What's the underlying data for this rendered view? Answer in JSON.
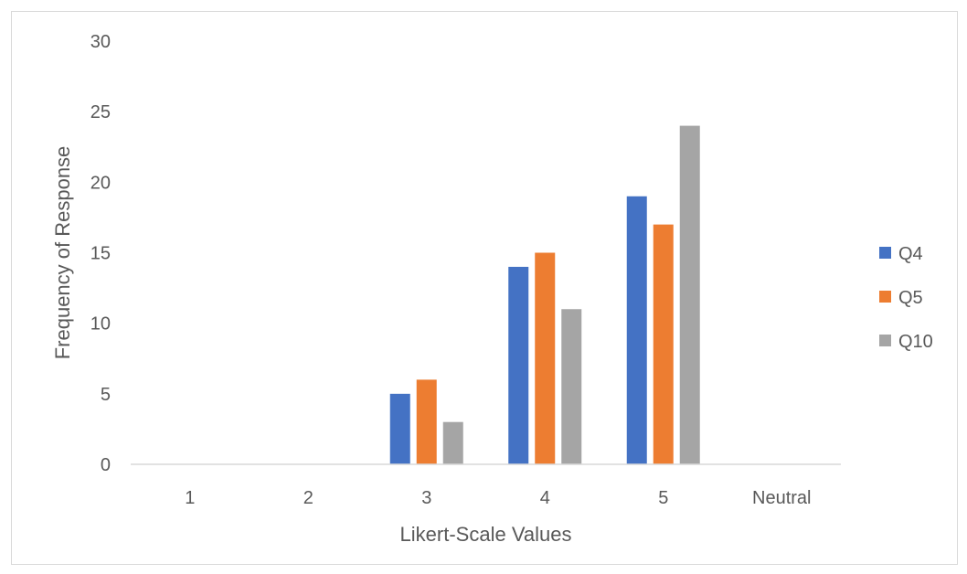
{
  "chart_data": {
    "type": "bar",
    "title": "",
    "xlabel": "Likert-Scale Values",
    "ylabel": "Frequency of Response",
    "categories": [
      "1",
      "2",
      "3",
      "4",
      "5",
      "Neutral"
    ],
    "ylim": [
      0,
      30
    ],
    "yticks": [
      0,
      5,
      10,
      15,
      20,
      25,
      30
    ],
    "grid": false,
    "legend_position": "right",
    "series": [
      {
        "name": "Q4",
        "color": "#4472c4",
        "values": [
          0,
          0,
          5,
          14,
          19,
          0
        ]
      },
      {
        "name": "Q5",
        "color": "#ed7d31",
        "values": [
          0,
          0,
          6,
          15,
          17,
          0
        ]
      },
      {
        "name": "Q10",
        "color": "#a5a5a5",
        "values": [
          0,
          0,
          3,
          11,
          24,
          0
        ]
      }
    ]
  }
}
